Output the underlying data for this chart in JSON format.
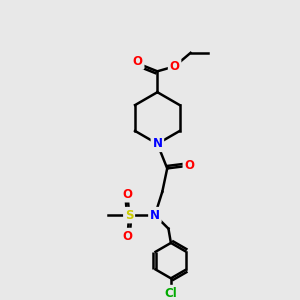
{
  "background_color": "#e8e8e8",
  "atom_colors": {
    "C": "#000000",
    "N": "#0000ff",
    "O": "#ff0000",
    "S": "#cccc00",
    "Cl": "#00aa00"
  },
  "bond_color": "#000000",
  "bond_width": 1.8,
  "figsize": [
    3.0,
    3.0
  ],
  "dpi": 100,
  "xlim": [
    0,
    10
  ],
  "ylim": [
    0,
    12
  ]
}
